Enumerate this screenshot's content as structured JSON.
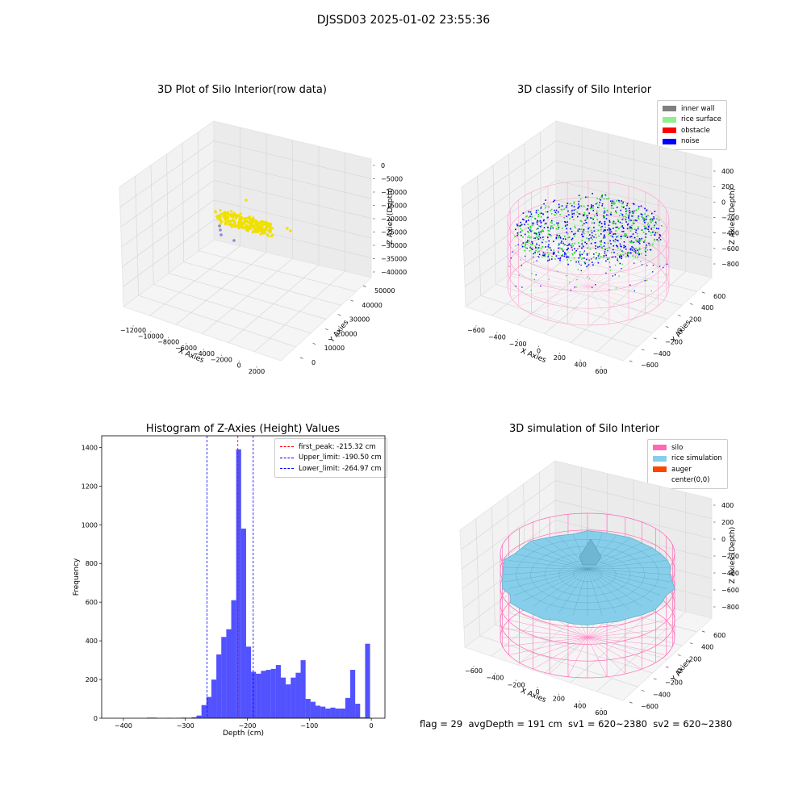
{
  "suptitle": "DJSSD03 2025-01-02 23:55:36",
  "footer": "flag = 29  avgDepth = 191 cm  sv1 = 620~2380  sv2 = 620~2380",
  "chart_data": [
    {
      "type": "scatter",
      "title": "3D Plot of Silo Interior(row data)",
      "xlabel": "X Axies",
      "ylabel": "Y Axies",
      "zlabel": "Z Axies (Depth)",
      "x_ticks": [
        "−12000",
        "−10000",
        "−8000",
        "−6000",
        "−4000",
        "−2000",
        "0",
        "2000"
      ],
      "y_ticks": [
        "0",
        "10000",
        "20000",
        "30000",
        "40000",
        "50000"
      ],
      "z_ticks": [
        "0",
        "−5000",
        "−10000",
        "−15000",
        "−20000",
        "−25000",
        "−30000",
        "−35000",
        "−40000"
      ],
      "colors": {
        "main": "#f0e000",
        "outlier": "#8888cc"
      }
    },
    {
      "type": "scatter",
      "title": "3D classify of Silo Interior",
      "xlabel": "X Axies",
      "ylabel": "Y Axies",
      "zlabel": "Z Axies (Depth)",
      "x_ticks": [
        "−600",
        "−400",
        "−200",
        "0",
        "200",
        "400",
        "600"
      ],
      "y_ticks": [
        "−600",
        "−400",
        "−200",
        "0",
        "200",
        "400",
        "600"
      ],
      "z_ticks": [
        "400",
        "200",
        "0",
        "−200",
        "−400",
        "−600",
        "−800"
      ],
      "legend": [
        {
          "label": "inner wall",
          "color": "#808080"
        },
        {
          "label": "rice surface",
          "color": "#90ee90"
        },
        {
          "label": "obstacle",
          "color": "#ff0000"
        },
        {
          "label": "noise",
          "color": "#0000ff"
        }
      ]
    },
    {
      "type": "bar",
      "title": "Histogram of Z-Axies (Height) Values",
      "xlabel": "Depth (cm)",
      "ylabel": "Frequency",
      "xlim": [
        -435,
        22
      ],
      "ylim": [
        0,
        1460
      ],
      "x_ticks": [
        -400,
        -300,
        -200,
        -100,
        0
      ],
      "y_ticks": [
        0,
        200,
        400,
        600,
        800,
        1000,
        1200,
        1400
      ],
      "bin_width": 8,
      "bin_left_edges": [
        -362,
        -354,
        -346,
        -338,
        -330,
        -322,
        -314,
        -306,
        -298,
        -290,
        -282,
        -274,
        -266,
        -258,
        -250,
        -242,
        -234,
        -226,
        -218,
        -210,
        -202,
        -194,
        -186,
        -178,
        -170,
        -162,
        -154,
        -146,
        -138,
        -130,
        -122,
        -114,
        -106,
        -98,
        -90,
        -82,
        -74,
        -66,
        -58,
        -50,
        -42,
        -34,
        -26,
        -18,
        -10,
        -2
      ],
      "values": [
        3,
        3,
        0,
        0,
        2,
        0,
        2,
        3,
        2,
        5,
        14,
        68,
        110,
        200,
        330,
        420,
        460,
        610,
        1390,
        980,
        370,
        240,
        230,
        245,
        250,
        255,
        275,
        210,
        175,
        210,
        235,
        300,
        100,
        85,
        65,
        60,
        50,
        55,
        50,
        50,
        105,
        250,
        75,
        5,
        385,
        0
      ],
      "bar_color": "#0000ff",
      "lines": [
        {
          "label": "first_peak: -215.32 cm",
          "value": -215.32,
          "color": "#ff0000"
        },
        {
          "label": "Upper_limit: -190.50 cm",
          "value": -190.5,
          "color": "#0000ff"
        },
        {
          "label": "Lower_limit: -264.97 cm",
          "value": -264.97,
          "color": "#0000ff"
        }
      ]
    },
    {
      "type": "area",
      "title": "3D simulation of Silo Interior",
      "xlabel": "X Axies",
      "ylabel": "Y Axies",
      "zlabel": "Z Axies (Depth)",
      "x_ticks": [
        "−600",
        "−400",
        "−200",
        "0",
        "200",
        "400",
        "600"
      ],
      "y_ticks": [
        "−600",
        "−400",
        "−200",
        "0",
        "200",
        "400",
        "600"
      ],
      "z_ticks": [
        "400",
        "200",
        "0",
        "−200",
        "−400",
        "−600",
        "−800"
      ],
      "legend": [
        {
          "label": "silo",
          "color": "#ff69b4"
        },
        {
          "label": "rice simulation",
          "color": "#87ceeb"
        },
        {
          "label": "auger",
          "color": "#ff4500"
        },
        {
          "label": "center(0,0)",
          "color": "#ffffff"
        }
      ]
    }
  ]
}
